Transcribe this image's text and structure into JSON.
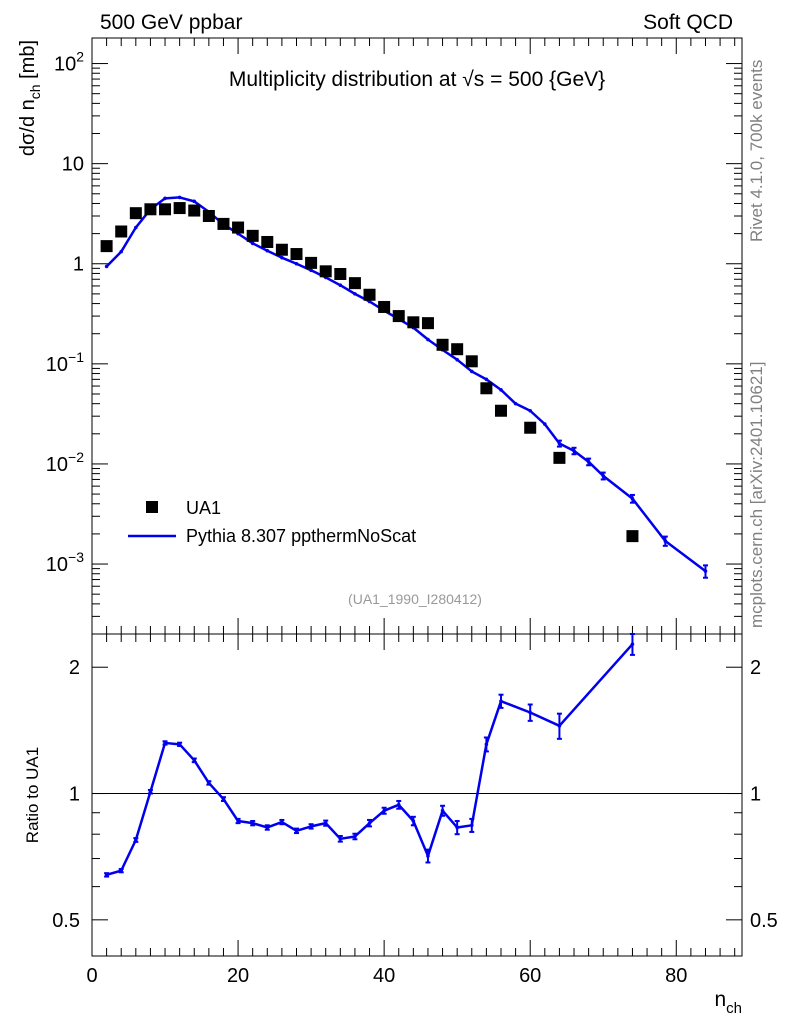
{
  "header": {
    "left": "500 GeV ppbar",
    "right": "Soft QCD"
  },
  "side_labels": {
    "upper": "Rivet 4.1.0,  700k events",
    "lower": "mcplots.cern.ch [arXiv:2401.10621]"
  },
  "colors": {
    "model": "#0000ee",
    "data": "#000000",
    "frame": "#000000",
    "side": "#808080"
  },
  "chart_data": [
    {
      "type": "scatter",
      "title": "Multiplicity distribution at √s = 500 {GeV}",
      "ylabel": "dσ/d n_ch [mb]",
      "yscale": "log",
      "xlim": [
        0,
        89
      ],
      "ylim": [
        0.0002,
        180
      ],
      "yticks": [
        {
          "v": 100,
          "base": "10",
          "exp": "2"
        },
        {
          "v": 10,
          "base": "10",
          "exp": ""
        },
        {
          "v": 1,
          "base": "1",
          "exp": ""
        },
        {
          "v": 0.1,
          "base": "10",
          "exp": "−1"
        },
        {
          "v": 0.01,
          "base": "10",
          "exp": "−2"
        },
        {
          "v": 0.001,
          "base": "10",
          "exp": "−3"
        }
      ],
      "analysis_tag": "(UA1_1990_I280412)",
      "legend": {
        "position": "bottom-left",
        "data_label": "UA1",
        "model_label": "Pythia 8.307 ppthermNoScat"
      },
      "series": [
        {
          "name": "UA1",
          "kind": "markers",
          "x": [
            2,
            4,
            6,
            8,
            10,
            12,
            14,
            16,
            18,
            20,
            22,
            24,
            26,
            28,
            30,
            32,
            34,
            36,
            38,
            40,
            42,
            44,
            46,
            48,
            50,
            52,
            54,
            56,
            60,
            64,
            74
          ],
          "y": [
            1.5,
            2.1,
            3.2,
            3.5,
            3.5,
            3.6,
            3.4,
            3.0,
            2.5,
            2.3,
            1.9,
            1.65,
            1.38,
            1.25,
            1.02,
            0.84,
            0.79,
            0.64,
            0.49,
            0.37,
            0.3,
            0.26,
            0.255,
            0.155,
            0.14,
            0.106,
            0.057,
            0.034,
            0.023,
            0.0115,
            0.0019
          ]
        },
        {
          "name": "Pythia 8.307 ppthermNoScat",
          "kind": "line",
          "x": [
            2,
            4,
            6,
            8,
            10,
            12,
            14,
            16,
            18,
            20,
            22,
            24,
            26,
            28,
            30,
            32,
            34,
            36,
            38,
            40,
            42,
            44,
            46,
            48,
            50,
            52,
            54,
            56,
            58,
            60,
            62,
            64,
            66,
            68,
            70,
            74,
            78.5,
            84
          ],
          "y": [
            0.94,
            1.32,
            2.3,
            3.5,
            4.5,
            4.6,
            4.2,
            3.3,
            2.47,
            2.0,
            1.6,
            1.35,
            1.15,
            1.0,
            0.86,
            0.73,
            0.61,
            0.5,
            0.42,
            0.34,
            0.28,
            0.23,
            0.175,
            0.138,
            0.11,
            0.084,
            0.07,
            0.055,
            0.04,
            0.034,
            0.025,
            0.016,
            0.0135,
            0.0105,
            0.0076,
            0.0045,
            0.0017,
            0.00085
          ],
          "err": [
            0,
            0,
            0,
            0,
            0,
            0,
            0,
            0,
            0,
            0,
            0,
            0,
            0,
            0,
            0,
            0,
            0,
            0,
            0,
            0,
            0,
            0,
            0,
            0,
            0,
            0,
            0,
            0,
            0,
            0,
            0,
            0.0011,
            0.001,
            0.0008,
            0.0006,
            0.0004,
            0.00018,
            0.00012
          ]
        }
      ]
    },
    {
      "type": "line",
      "ylabel": "Ratio to UA1",
      "xlabel": "n_ch",
      "yscale": "log",
      "xlim": [
        0,
        89
      ],
      "ylim": [
        0.41,
        2.4
      ],
      "xticks": [
        0,
        20,
        40,
        60,
        80
      ],
      "yticks": [
        0.5,
        1,
        2
      ],
      "reference": 1,
      "series": [
        {
          "name": "Pythia 8.307 ppthermNoScat / UA1",
          "x": [
            2,
            4,
            6,
            8,
            10,
            12,
            14,
            16,
            18,
            20,
            22,
            24,
            26,
            28,
            30,
            32,
            34,
            36,
            38,
            40,
            42,
            44,
            46,
            48,
            50,
            52,
            54,
            56,
            60,
            64,
            74
          ],
          "y": [
            0.64,
            0.655,
            0.775,
            1.01,
            1.32,
            1.31,
            1.2,
            1.06,
            0.97,
            0.86,
            0.85,
            0.83,
            0.855,
            0.815,
            0.835,
            0.85,
            0.78,
            0.79,
            0.85,
            0.91,
            0.94,
            0.86,
            0.71,
            0.91,
            0.83,
            0.84,
            1.31,
            1.66,
            1.56,
            1.45,
            2.27
          ],
          "err": [
            0.006,
            0.006,
            0.008,
            0.01,
            0.012,
            0.012,
            0.012,
            0.01,
            0.01,
            0.01,
            0.01,
            0.01,
            0.01,
            0.01,
            0.01,
            0.012,
            0.012,
            0.012,
            0.015,
            0.015,
            0.02,
            0.02,
            0.025,
            0.025,
            0.03,
            0.03,
            0.05,
            0.06,
            0.07,
            0.1,
            0.13
          ]
        }
      ]
    }
  ]
}
